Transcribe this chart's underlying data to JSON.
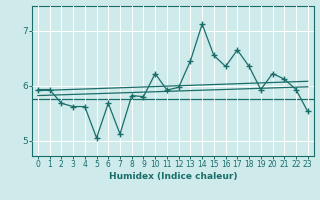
{
  "xlabel": "Humidex (Indice chaleur)",
  "bg_color": "#ceeaeb",
  "line_color": "#1a6e6a",
  "xlim": [
    -0.5,
    23.5
  ],
  "ylim": [
    4.72,
    7.45
  ],
  "yticks": [
    5,
    6,
    7
  ],
  "xtick_labels": [
    "0",
    "1",
    "2",
    "3",
    "4",
    "5",
    "6",
    "7",
    "8",
    "9",
    "10",
    "11",
    "12",
    "13",
    "14",
    "15",
    "16",
    "17",
    "18",
    "19",
    "20",
    "21",
    "22",
    "23"
  ],
  "xticks": [
    0,
    1,
    2,
    3,
    4,
    5,
    6,
    7,
    8,
    9,
    10,
    11,
    12,
    13,
    14,
    15,
    16,
    17,
    18,
    19,
    20,
    21,
    22,
    23
  ],
  "data_x": [
    0,
    1,
    2,
    3,
    4,
    5,
    6,
    7,
    8,
    9,
    10,
    11,
    12,
    13,
    14,
    15,
    16,
    17,
    18,
    19,
    20,
    21,
    22,
    23
  ],
  "data_y": [
    5.93,
    5.93,
    5.68,
    5.62,
    5.62,
    5.05,
    5.68,
    5.12,
    5.82,
    5.8,
    6.22,
    5.92,
    5.97,
    6.45,
    7.12,
    6.55,
    6.35,
    6.65,
    6.35,
    5.93,
    6.22,
    6.12,
    5.93,
    5.53
  ],
  "reg_line1_x": [
    0,
    23
  ],
  "reg_line1_y": [
    5.91,
    6.08
  ],
  "reg_line2_x": [
    0,
    23
  ],
  "reg_line2_y": [
    5.82,
    5.98
  ],
  "horiz_y": 5.75,
  "grid_color": "#b8d8da"
}
